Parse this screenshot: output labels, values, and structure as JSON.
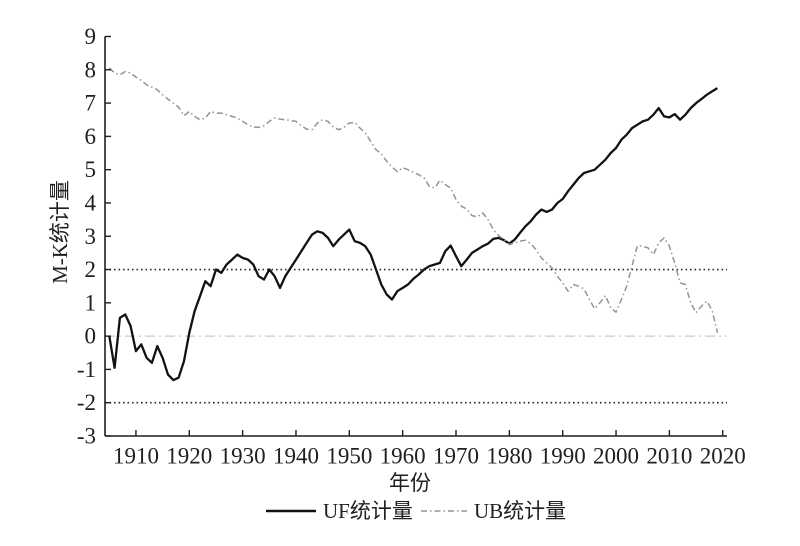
{
  "figure": {
    "background": "#ffffff",
    "y_axis_label": "M-K统计量",
    "x_axis_label": "年份"
  },
  "legend": {
    "uf_label": "UF统计量",
    "ub_label": "UB统计量"
  },
  "colors": {
    "uf_line": "#121212",
    "ub_line": "#949494",
    "critical_line": "#2b2b2b",
    "zero_line": "#c9c9c9",
    "text": "#1f1f1f"
  },
  "chart_data": {
    "type": "line",
    "title": "",
    "xlabel": "年份",
    "ylabel": "M-K统计量",
    "xlim": [
      1904.2,
      2020.8
    ],
    "ylim": [
      -3,
      9
    ],
    "x_ticks": [
      1910,
      1920,
      1930,
      1940,
      1950,
      1960,
      1970,
      1980,
      1990,
      2000,
      2010,
      2020
    ],
    "y_ticks": [
      -3,
      -2,
      -1,
      0,
      1,
      2,
      3,
      4,
      5,
      6,
      7,
      8,
      9
    ],
    "grid": false,
    "legend_position": "bottom-center",
    "reference_lines": [
      {
        "name": "upper-critical-line",
        "y": 2,
        "style": "dotted",
        "color": "#2b2b2b"
      },
      {
        "name": "lower-critical-line",
        "y": -2,
        "style": "dotted",
        "color": "#2b2b2b"
      },
      {
        "name": "zero-line",
        "y": 0,
        "style": "dash-dot",
        "color": "#c9c9c9"
      }
    ],
    "series": [
      {
        "name": "UF统计量",
        "style": "solid",
        "color": "#121212",
        "width": 2.3,
        "points": [
          [
            1905,
            0.0
          ],
          [
            1906,
            -0.95
          ],
          [
            1907,
            0.55
          ],
          [
            1908,
            0.65
          ],
          [
            1909,
            0.3
          ],
          [
            1910,
            -0.45
          ],
          [
            1911,
            -0.25
          ],
          [
            1912,
            -0.65
          ],
          [
            1913,
            -0.8
          ],
          [
            1914,
            -0.3
          ],
          [
            1915,
            -0.65
          ],
          [
            1916,
            -1.15
          ],
          [
            1917,
            -1.32
          ],
          [
            1918,
            -1.25
          ],
          [
            1919,
            -0.75
          ],
          [
            1920,
            0.1
          ],
          [
            1921,
            0.75
          ],
          [
            1922,
            1.2
          ],
          [
            1923,
            1.65
          ],
          [
            1924,
            1.5
          ],
          [
            1925,
            2.0
          ],
          [
            1926,
            1.9
          ],
          [
            1927,
            2.15
          ],
          [
            1928,
            2.3
          ],
          [
            1929,
            2.45
          ],
          [
            1930,
            2.35
          ],
          [
            1931,
            2.3
          ],
          [
            1932,
            2.15
          ],
          [
            1933,
            1.8
          ],
          [
            1934,
            1.7
          ],
          [
            1935,
            2.0
          ],
          [
            1936,
            1.8
          ],
          [
            1937,
            1.45
          ],
          [
            1938,
            1.8
          ],
          [
            1939,
            2.05
          ],
          [
            1940,
            2.3
          ],
          [
            1941,
            2.55
          ],
          [
            1942,
            2.8
          ],
          [
            1943,
            3.05
          ],
          [
            1944,
            3.15
          ],
          [
            1945,
            3.1
          ],
          [
            1946,
            2.95
          ],
          [
            1947,
            2.7
          ],
          [
            1948,
            2.9
          ],
          [
            1949,
            3.05
          ],
          [
            1950,
            3.2
          ],
          [
            1951,
            2.85
          ],
          [
            1952,
            2.8
          ],
          [
            1953,
            2.7
          ],
          [
            1954,
            2.45
          ],
          [
            1955,
            2.0
          ],
          [
            1956,
            1.55
          ],
          [
            1957,
            1.25
          ],
          [
            1958,
            1.1
          ],
          [
            1959,
            1.35
          ],
          [
            1960,
            1.45
          ],
          [
            1961,
            1.55
          ],
          [
            1962,
            1.72
          ],
          [
            1963,
            1.85
          ],
          [
            1964,
            2.0
          ],
          [
            1965,
            2.1
          ],
          [
            1966,
            2.15
          ],
          [
            1967,
            2.2
          ],
          [
            1968,
            2.55
          ],
          [
            1969,
            2.72
          ],
          [
            1970,
            2.4
          ],
          [
            1971,
            2.1
          ],
          [
            1972,
            2.3
          ],
          [
            1973,
            2.5
          ],
          [
            1974,
            2.6
          ],
          [
            1975,
            2.7
          ],
          [
            1976,
            2.78
          ],
          [
            1977,
            2.92
          ],
          [
            1978,
            2.95
          ],
          [
            1979,
            2.88
          ],
          [
            1980,
            2.78
          ],
          [
            1981,
            2.9
          ],
          [
            1982,
            3.1
          ],
          [
            1983,
            3.3
          ],
          [
            1984,
            3.45
          ],
          [
            1985,
            3.65
          ],
          [
            1986,
            3.8
          ],
          [
            1987,
            3.73
          ],
          [
            1988,
            3.8
          ],
          [
            1989,
            4.0
          ],
          [
            1990,
            4.12
          ],
          [
            1991,
            4.35
          ],
          [
            1992,
            4.55
          ],
          [
            1993,
            4.75
          ],
          [
            1994,
            4.9
          ],
          [
            1995,
            4.95
          ],
          [
            1996,
            5.0
          ],
          [
            1997,
            5.15
          ],
          [
            1998,
            5.3
          ],
          [
            1999,
            5.5
          ],
          [
            2000,
            5.65
          ],
          [
            2001,
            5.9
          ],
          [
            2002,
            6.05
          ],
          [
            2003,
            6.25
          ],
          [
            2004,
            6.35
          ],
          [
            2005,
            6.45
          ],
          [
            2006,
            6.5
          ],
          [
            2007,
            6.65
          ],
          [
            2008,
            6.85
          ],
          [
            2009,
            6.6
          ],
          [
            2010,
            6.57
          ],
          [
            2011,
            6.67
          ],
          [
            2012,
            6.5
          ],
          [
            2013,
            6.65
          ],
          [
            2014,
            6.85
          ],
          [
            2015,
            7.0
          ],
          [
            2016,
            7.12
          ],
          [
            2017,
            7.25
          ],
          [
            2018,
            7.35
          ],
          [
            2019,
            7.45
          ]
        ]
      },
      {
        "name": "UB统计量",
        "style": "dash-dot",
        "color": "#949494",
        "width": 1.5,
        "points": [
          [
            1905,
            8.05
          ],
          [
            1906,
            7.9
          ],
          [
            1907,
            7.85
          ],
          [
            1908,
            7.95
          ],
          [
            1909,
            7.9
          ],
          [
            1910,
            7.78
          ],
          [
            1911,
            7.68
          ],
          [
            1912,
            7.55
          ],
          [
            1913,
            7.48
          ],
          [
            1914,
            7.4
          ],
          [
            1915,
            7.25
          ],
          [
            1916,
            7.12
          ],
          [
            1917,
            7.0
          ],
          [
            1918,
            6.88
          ],
          [
            1919,
            6.62
          ],
          [
            1920,
            6.75
          ],
          [
            1921,
            6.6
          ],
          [
            1922,
            6.5
          ],
          [
            1923,
            6.55
          ],
          [
            1924,
            6.75
          ],
          [
            1925,
            6.7
          ],
          [
            1926,
            6.7
          ],
          [
            1927,
            6.65
          ],
          [
            1928,
            6.6
          ],
          [
            1929,
            6.55
          ],
          [
            1930,
            6.45
          ],
          [
            1931,
            6.35
          ],
          [
            1932,
            6.28
          ],
          [
            1933,
            6.27
          ],
          [
            1934,
            6.32
          ],
          [
            1935,
            6.45
          ],
          [
            1936,
            6.55
          ],
          [
            1937,
            6.52
          ],
          [
            1938,
            6.5
          ],
          [
            1939,
            6.48
          ],
          [
            1940,
            6.45
          ],
          [
            1941,
            6.32
          ],
          [
            1942,
            6.22
          ],
          [
            1943,
            6.2
          ],
          [
            1944,
            6.4
          ],
          [
            1945,
            6.5
          ],
          [
            1946,
            6.45
          ],
          [
            1947,
            6.28
          ],
          [
            1948,
            6.2
          ],
          [
            1949,
            6.27
          ],
          [
            1950,
            6.4
          ],
          [
            1951,
            6.42
          ],
          [
            1952,
            6.25
          ],
          [
            1953,
            6.1
          ],
          [
            1954,
            5.85
          ],
          [
            1955,
            5.6
          ],
          [
            1956,
            5.48
          ],
          [
            1957,
            5.25
          ],
          [
            1958,
            5.08
          ],
          [
            1959,
            4.94
          ],
          [
            1960,
            5.06
          ],
          [
            1961,
            5.0
          ],
          [
            1962,
            4.92
          ],
          [
            1963,
            4.85
          ],
          [
            1964,
            4.75
          ],
          [
            1965,
            4.5
          ],
          [
            1966,
            4.45
          ],
          [
            1967,
            4.68
          ],
          [
            1968,
            4.55
          ],
          [
            1969,
            4.45
          ],
          [
            1970,
            4.1
          ],
          [
            1971,
            3.9
          ],
          [
            1972,
            3.82
          ],
          [
            1973,
            3.62
          ],
          [
            1974,
            3.58
          ],
          [
            1975,
            3.7
          ],
          [
            1976,
            3.5
          ],
          [
            1977,
            3.2
          ],
          [
            1978,
            3.02
          ],
          [
            1979,
            2.9
          ],
          [
            1980,
            2.75
          ],
          [
            1981,
            2.8
          ],
          [
            1982,
            2.85
          ],
          [
            1983,
            2.88
          ],
          [
            1984,
            2.78
          ],
          [
            1985,
            2.6
          ],
          [
            1986,
            2.35
          ],
          [
            1987,
            2.2
          ],
          [
            1988,
            2.05
          ],
          [
            1989,
            1.8
          ],
          [
            1990,
            1.6
          ],
          [
            1991,
            1.35
          ],
          [
            1992,
            1.55
          ],
          [
            1993,
            1.5
          ],
          [
            1994,
            1.42
          ],
          [
            1995,
            1.1
          ],
          [
            1996,
            0.82
          ],
          [
            1997,
            1.0
          ],
          [
            1998,
            1.22
          ],
          [
            1999,
            0.85
          ],
          [
            2000,
            0.72
          ],
          [
            2001,
            1.1
          ],
          [
            2002,
            1.5
          ],
          [
            2003,
            2.1
          ],
          [
            2004,
            2.72
          ],
          [
            2005,
            2.7
          ],
          [
            2006,
            2.65
          ],
          [
            2007,
            2.45
          ],
          [
            2008,
            2.8
          ],
          [
            2009,
            2.95
          ],
          [
            2010,
            2.7
          ],
          [
            2011,
            2.2
          ],
          [
            2012,
            1.6
          ],
          [
            2013,
            1.55
          ],
          [
            2014,
            1.0
          ],
          [
            2015,
            0.7
          ],
          [
            2016,
            0.9
          ],
          [
            2017,
            1.05
          ],
          [
            2018,
            0.78
          ],
          [
            2019,
            0.1
          ]
        ]
      }
    ]
  }
}
